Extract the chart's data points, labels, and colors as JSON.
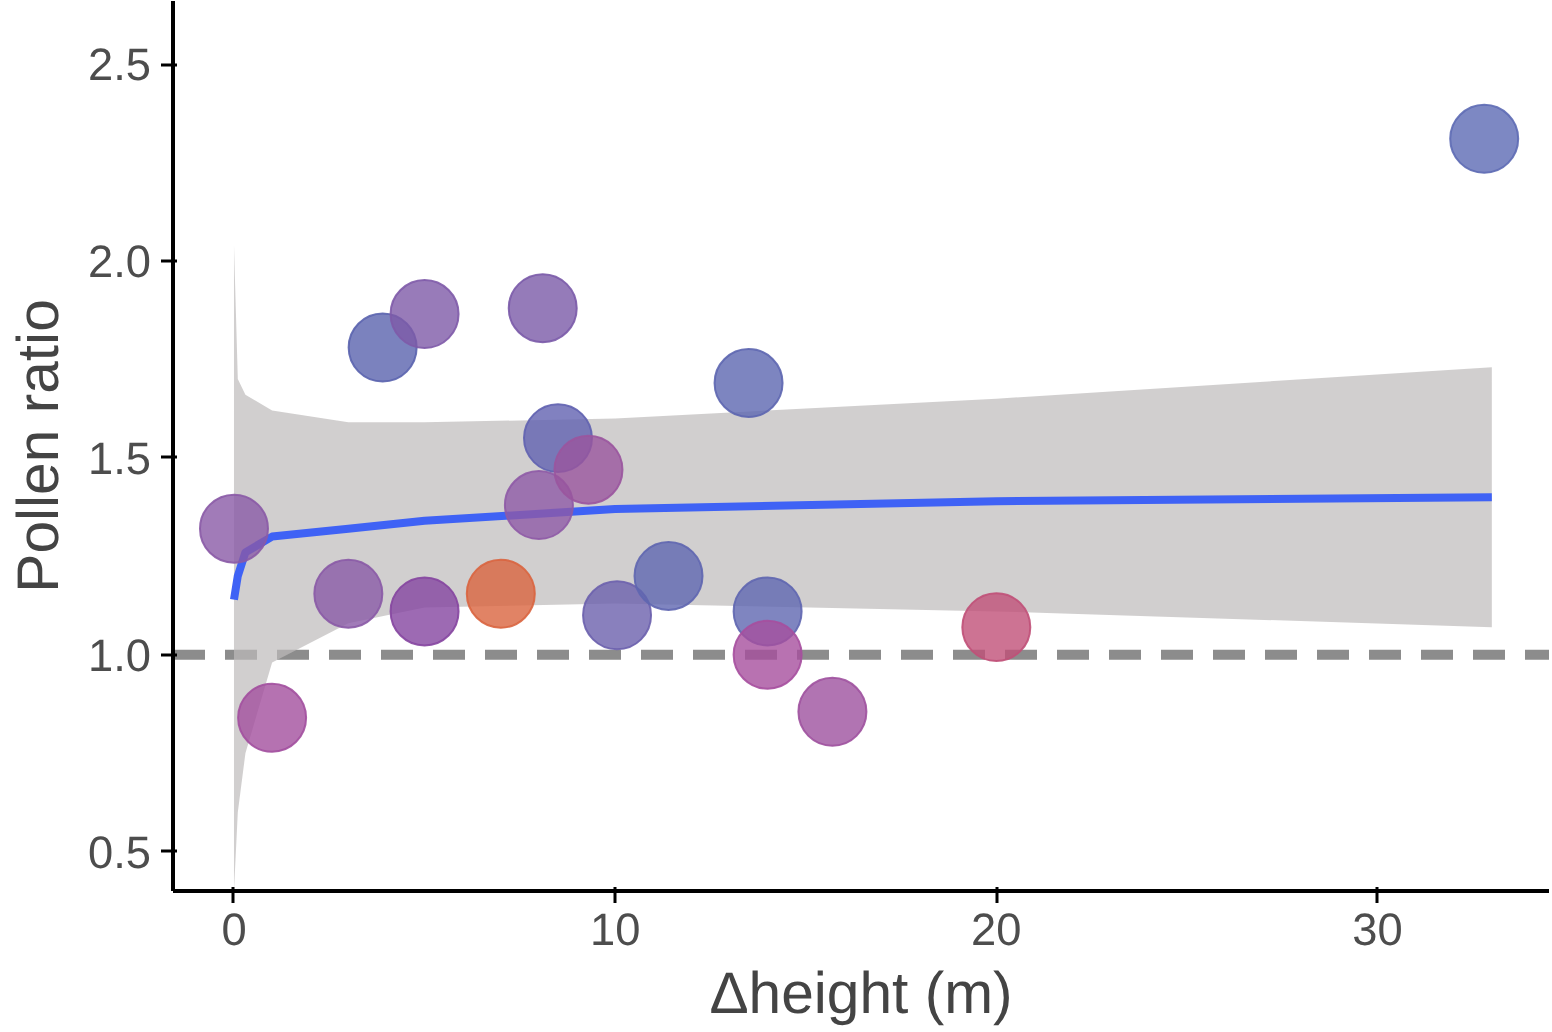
{
  "chart_data": {
    "type": "scatter",
    "xlabel": "Δheight (m)",
    "ylabel": "Pollen ratio",
    "xlim": [
      -1.6,
      34.5
    ],
    "ylim": [
      0.4,
      2.66
    ],
    "xticks": [
      0,
      10,
      20,
      30
    ],
    "yticks": [
      {
        "value": 0.5,
        "label": "0.5"
      },
      {
        "value": 1.0,
        "label": "1.0"
      },
      {
        "value": 1.5,
        "label": "1.5"
      },
      {
        "value": 2.0,
        "label": "2.0"
      },
      {
        "value": 2.5,
        "label": "2.5"
      }
    ],
    "grid": false,
    "series": [
      {
        "marker": "circle",
        "x": [
          0,
          1.0,
          3.0,
          3.9,
          5.0,
          5.0,
          7.0,
          8.1,
          8.0,
          8.5,
          9.3,
          10.05,
          11.4,
          13.5,
          14.0,
          14.0,
          15.7,
          20.0,
          32.8
        ],
        "values": [
          1.32,
          0.84,
          1.155,
          1.78,
          1.865,
          1.11,
          1.155,
          1.88,
          1.38,
          1.55,
          1.47,
          1.1,
          1.2,
          1.69,
          1.11,
          1.0,
          0.855,
          1.07,
          2.31
        ],
        "colors": [
          "#8a5aa6",
          "#a24f9e",
          "#8a5aa6",
          "#5a63ae",
          "#7e5aa8",
          "#8545a0",
          "#d9643f",
          "#7a5aa8",
          "#8e5aa6",
          "#6162b0",
          "#9a559e",
          "#6b60ad",
          "#5f66b0",
          "#5d66b0",
          "#5f66b0",
          "#a64f9e",
          "#9e519f",
          "#c05078",
          "#5d6ab4"
        ]
      },
      {
        "type": "line",
        "marker": "none",
        "color": "#3f62f5",
        "x": [
          0,
          0.1,
          0.3,
          1,
          3,
          5,
          10,
          20,
          33
        ],
        "values": [
          1.14,
          1.2,
          1.26,
          1.3,
          1.32,
          1.34,
          1.37,
          1.39,
          1.4
        ],
        "lower": [
          0.4,
          0.6,
          0.75,
          0.98,
          1.08,
          1.12,
          1.13,
          1.11,
          1.07
        ],
        "upper": [
          2.04,
          1.7,
          1.66,
          1.62,
          1.59,
          1.59,
          1.6,
          1.65,
          1.73
        ]
      }
    ],
    "ref_lines": [
      {
        "axis": "y",
        "value": 1.0,
        "color": "#8c8c8c",
        "line_style": "dashed"
      }
    ]
  }
}
